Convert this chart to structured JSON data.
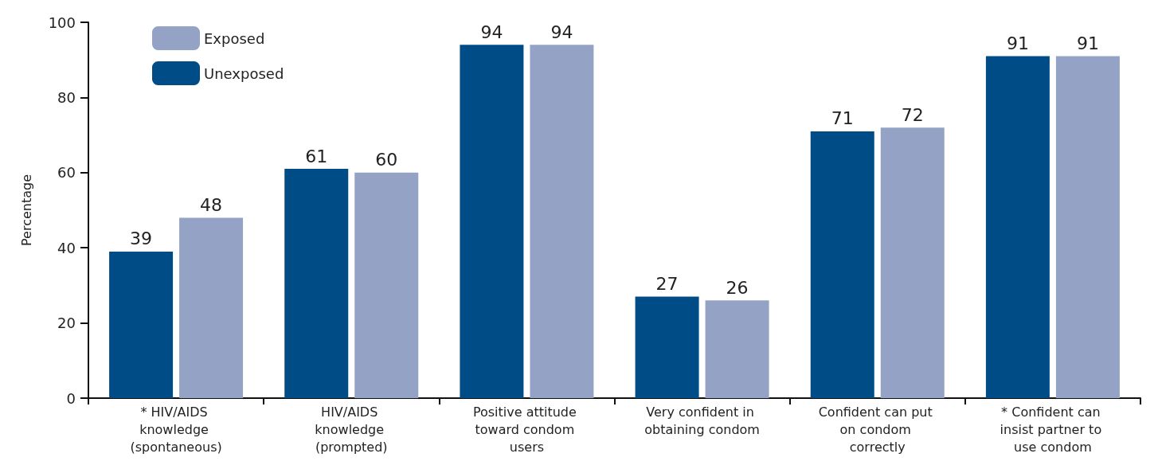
{
  "chart_data": {
    "type": "bar",
    "ylabel": "Percentage",
    "categories": [
      "* HIV/AIDS knowledge (spontaneous)",
      "HIV/AIDS knowledge (prompted)",
      "Positive attitude toward condom users",
      "Very confident in obtaining condom",
      "Confident can put on condom correctly",
      "* Confident can insist partner to use condom"
    ],
    "series": [
      {
        "name": "Unexposed",
        "color": "#004c87",
        "values": [
          39,
          61,
          94,
          27,
          71,
          91
        ]
      },
      {
        "name": "Exposed",
        "color": "#94a3c5",
        "values": [
          48,
          60,
          94,
          26,
          72,
          91
        ]
      }
    ],
    "ylim": [
      0,
      100
    ],
    "yticks": [
      0,
      20,
      40,
      60,
      80,
      100
    ],
    "grid": false,
    "legend": "top left",
    "data_labels": true
  }
}
